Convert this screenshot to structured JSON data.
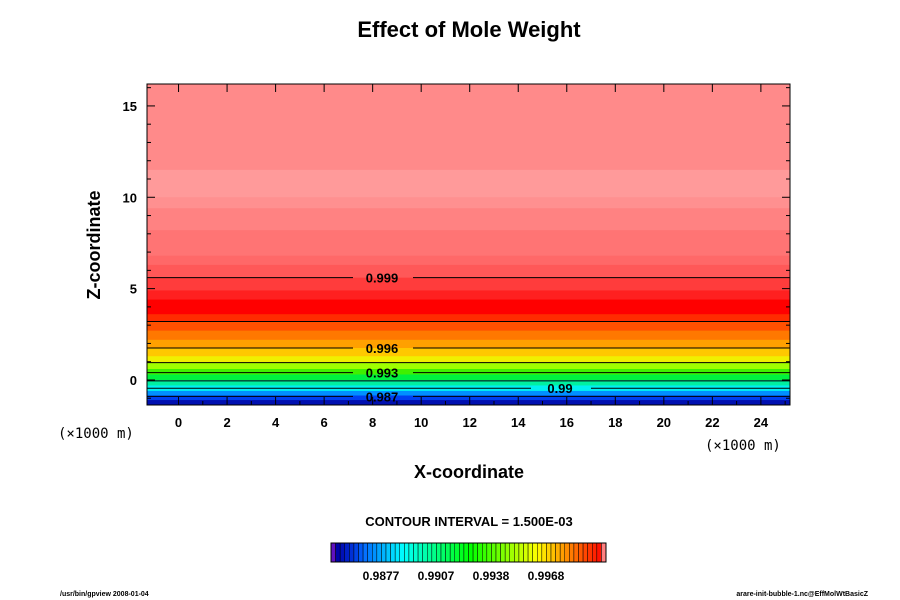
{
  "chart_data": {
    "type": "heatmap",
    "title": "Effect of Mole Weight",
    "xlabel": "X-coordinate",
    "ylabel": "Z-coordinate",
    "x_units": "(×1000 m)",
    "y_units": "(×1000 m)",
    "xlim": [
      -1.3,
      25.2
    ],
    "ylim": [
      -1.37,
      16.2
    ],
    "xticks": [
      0,
      2,
      4,
      6,
      8,
      10,
      12,
      14,
      16,
      18,
      20,
      22,
      24
    ],
    "yticks": [
      0,
      5,
      10,
      15
    ],
    "bands": [
      {
        "z0": 11.5,
        "z1": 16.2,
        "color": "#ff8a8a"
      },
      {
        "z0": 10.0,
        "z1": 11.5,
        "color": "#ff9a9a"
      },
      {
        "z0": 9.4,
        "z1": 10.0,
        "color": "#ff9090"
      },
      {
        "z0": 8.2,
        "z1": 9.4,
        "color": "#ff8282"
      },
      {
        "z0": 6.8,
        "z1": 8.2,
        "color": "#ff7474"
      },
      {
        "z0": 6.3,
        "z1": 6.8,
        "color": "#ff6868"
      },
      {
        "z0": 5.6,
        "z1": 6.3,
        "color": "#ff5858"
      },
      {
        "z0": 4.9,
        "z1": 5.6,
        "color": "#ff3c3c"
      },
      {
        "z0": 4.4,
        "z1": 4.9,
        "color": "#ff2020"
      },
      {
        "z0": 3.6,
        "z1": 4.4,
        "color": "#ff0000"
      },
      {
        "z0": 3.2,
        "z1": 3.6,
        "color": "#ff2c00"
      },
      {
        "z0": 2.7,
        "z1": 3.2,
        "color": "#ff5000"
      },
      {
        "z0": 2.2,
        "z1": 2.7,
        "color": "#ff7800"
      },
      {
        "z0": 1.75,
        "z1": 2.2,
        "color": "#ffa000"
      },
      {
        "z0": 1.3,
        "z1": 1.75,
        "color": "#ffc800"
      },
      {
        "z0": 0.95,
        "z1": 1.3,
        "color": "#f0f000"
      },
      {
        "z0": 0.6,
        "z1": 0.95,
        "color": "#a0ff00"
      },
      {
        "z0": 0.3,
        "z1": 0.6,
        "color": "#40f000"
      },
      {
        "z0": 0.0,
        "z1": 0.3,
        "color": "#00f040"
      },
      {
        "z0": -0.3,
        "z1": 0.0,
        "color": "#00f0a0"
      },
      {
        "z0": -0.6,
        "z1": -0.3,
        "color": "#00f0f0"
      },
      {
        "z0": -0.85,
        "z1": -0.6,
        "color": "#0090ff"
      },
      {
        "z0": -1.1,
        "z1": -0.85,
        "color": "#0040f0"
      },
      {
        "z0": -1.37,
        "z1": -1.1,
        "color": "#0010b0"
      }
    ],
    "contours": [
      {
        "z": 5.6,
        "label": "0.999"
      },
      {
        "z": 3.2,
        "label": ""
      },
      {
        "z": 1.75,
        "label": "0.996"
      },
      {
        "z": 0.95,
        "label": ""
      },
      {
        "z": 0.4,
        "label": "0.993"
      },
      {
        "z": -0.05,
        "label": ""
      },
      {
        "z": -0.45,
        "label": "0.99"
      },
      {
        "z": -0.9,
        "label": "0.987"
      }
    ],
    "contour_interval": "CONTOUR INTERVAL = 1.500E-03",
    "colorbar_ticks": [
      "0.9877",
      "0.9907",
      "0.9938",
      "0.9968"
    ]
  },
  "footer": {
    "left": "/usr/bin/gpview 2008-01-04",
    "right": "arare-init-bubble-1.nc@EffMolWtBasicZ"
  }
}
